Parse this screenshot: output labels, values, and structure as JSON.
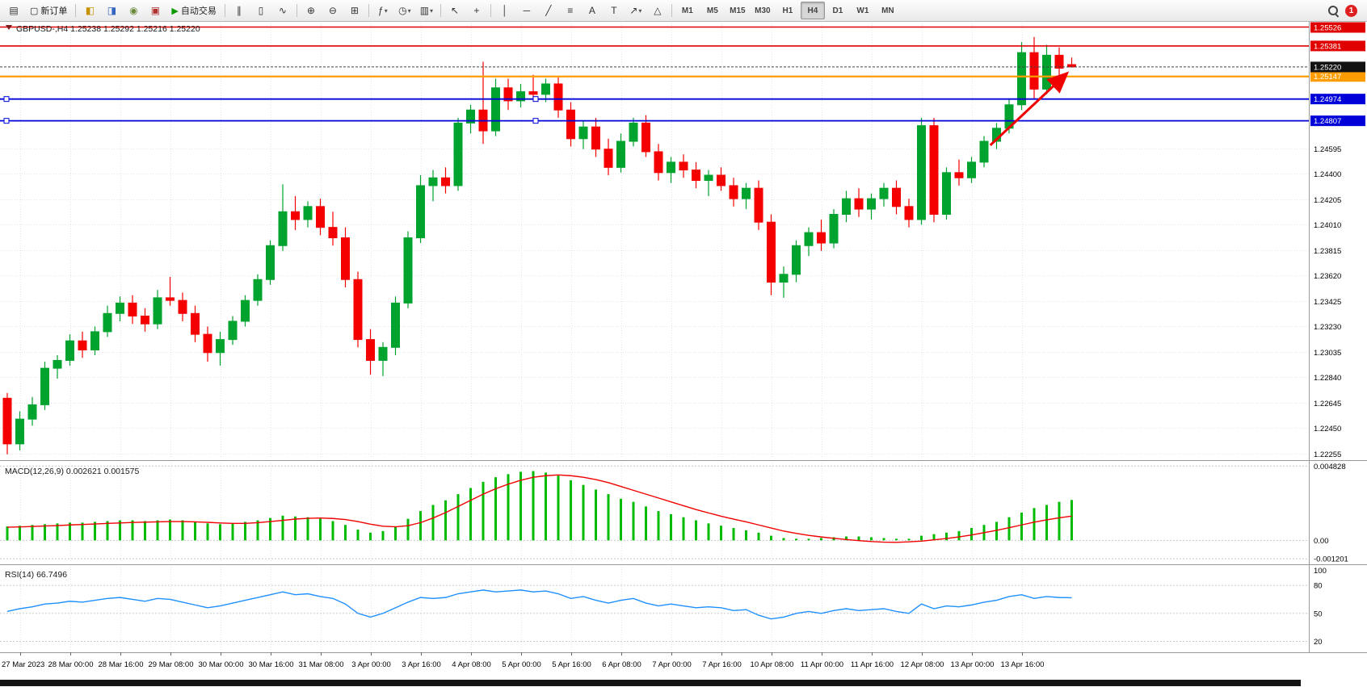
{
  "toolbar": {
    "new_order_label": "新订单",
    "autotrading_label": "自动交易",
    "timeframes": [
      "M1",
      "M5",
      "M15",
      "M30",
      "H1",
      "H4",
      "D1",
      "W1",
      "MN"
    ],
    "active_timeframe": "H4",
    "notification_badge": "1"
  },
  "icons": {
    "new_chart": "▤",
    "new_order": "▢",
    "market_watch": "◧",
    "data_window": "◨",
    "navigator": "◉",
    "terminal": "▣",
    "autotrading_play": "▶",
    "bars_chart": "∥",
    "candles_chart": "▯",
    "line_chart": "∿",
    "zoom_in": "⊕",
    "zoom_out": "⊖",
    "tile_windows": "⊞",
    "indicators": "ƒ",
    "periods": "◷",
    "templates": "▥",
    "cursor": "↖",
    "crosshair": "+",
    "vertical_line": "│",
    "horizontal_line": "─",
    "trendline": "╱",
    "fibonacci": "≡",
    "text_tool": "A",
    "label_tool": "T",
    "arrows_tool": "↗",
    "shapes_tool": "△",
    "chevron_down": "▾",
    "collapse_marker": "▼"
  },
  "chart": {
    "symbol": "GBPUSD-",
    "timeframe": "H4",
    "open": "1.25238",
    "high": "1.25292",
    "low": "1.25216",
    "close": "1.25220",
    "title_line": "GBPUSD-,H4 1.25238 1.25292 1.25216 1.25220"
  },
  "indicators": {
    "macd_label": "MACD(12,26,9) 0.002621 0.001575",
    "rsi_label": "RSI(14) 66.7496"
  },
  "chart_data": {
    "type": "candlestick",
    "symbol": "GBPUSD-",
    "timeframe": "H4",
    "price_axis": {
      "max": 1.2556,
      "min": 1.2223,
      "ticks": [
        1.24595,
        1.244,
        1.24205,
        1.2401,
        1.23815,
        1.2362,
        1.23425,
        1.2323,
        1.23035,
        1.2284,
        1.22645,
        1.2245,
        1.22255
      ]
    },
    "time_labels": [
      "27 Mar 2023",
      "28 Mar 00:00",
      "28 Mar 16:00",
      "29 Mar 08:00",
      "30 Mar 00:00",
      "30 Mar 16:00",
      "31 Mar 08:00",
      "3 Apr 00:00",
      "3 Apr 16:00",
      "4 Apr 08:00",
      "5 Apr 00:00",
      "5 Apr 16:00",
      "6 Apr 08:00",
      "7 Apr 00:00",
      "7 Apr 16:00",
      "10 Apr 08:00",
      "11 Apr 00:00",
      "11 Apr 16:00",
      "12 Apr 08:00",
      "13 Apr 00:00",
      "13 Apr 16:00"
    ],
    "candles": [
      [
        1.2268,
        1.2272,
        1.2225,
        1.2233
      ],
      [
        1.2233,
        1.2258,
        1.2228,
        1.2252
      ],
      [
        1.2252,
        1.2269,
        1.2247,
        1.2263
      ],
      [
        1.2263,
        1.2296,
        1.2259,
        1.2291
      ],
      [
        1.2291,
        1.2301,
        1.2283,
        1.2297
      ],
      [
        1.2297,
        1.2317,
        1.2293,
        1.2312
      ],
      [
        1.2312,
        1.2319,
        1.2299,
        1.2305
      ],
      [
        1.2305,
        1.2323,
        1.2301,
        1.2319
      ],
      [
        1.2319,
        1.2339,
        1.2315,
        1.2333
      ],
      [
        1.2333,
        1.2346,
        1.2327,
        1.2341
      ],
      [
        1.2341,
        1.2347,
        1.2325,
        1.2331
      ],
      [
        1.2331,
        1.2337,
        1.2319,
        1.2325
      ],
      [
        1.2325,
        1.2351,
        1.2321,
        1.2345
      ],
      [
        1.2345,
        1.2361,
        1.2339,
        1.2343
      ],
      [
        1.2343,
        1.2349,
        1.2327,
        1.2333
      ],
      [
        1.2333,
        1.2339,
        1.2311,
        1.2317
      ],
      [
        1.2317,
        1.2323,
        1.2296,
        1.2303
      ],
      [
        1.2303,
        1.2319,
        1.2293,
        1.2313
      ],
      [
        1.2313,
        1.2331,
        1.2309,
        1.2327
      ],
      [
        1.2327,
        1.2347,
        1.2323,
        1.2343
      ],
      [
        1.2343,
        1.2363,
        1.2339,
        1.2359
      ],
      [
        1.2359,
        1.2389,
        1.2355,
        1.2385
      ],
      [
        1.2385,
        1.2432,
        1.2381,
        1.2411
      ],
      [
        1.2411,
        1.2423,
        1.2397,
        1.2405
      ],
      [
        1.2405,
        1.2419,
        1.2399,
        1.2415
      ],
      [
        1.2415,
        1.2421,
        1.2393,
        1.2399
      ],
      [
        1.2399,
        1.2411,
        1.2385,
        1.2391
      ],
      [
        1.2391,
        1.2399,
        1.2353,
        1.2359
      ],
      [
        1.2359,
        1.2365,
        1.2307,
        1.2313
      ],
      [
        1.2313,
        1.2321,
        1.2286,
        1.2297
      ],
      [
        1.2297,
        1.2311,
        1.2285,
        1.2307
      ],
      [
        1.2307,
        1.2346,
        1.2301,
        1.2341
      ],
      [
        1.2341,
        1.2396,
        1.2337,
        1.2391
      ],
      [
        1.2391,
        1.2439,
        1.2387,
        1.2431
      ],
      [
        1.2431,
        1.2443,
        1.2419,
        1.2437
      ],
      [
        1.2437,
        1.2445,
        1.2425,
        1.2431
      ],
      [
        1.2431,
        1.2483,
        1.2427,
        1.2479
      ],
      [
        1.2479,
        1.2493,
        1.2471,
        1.2489
      ],
      [
        1.2489,
        1.2526,
        1.2463,
        1.2473
      ],
      [
        1.2473,
        1.2513,
        1.2469,
        1.2506
      ],
      [
        1.2506,
        1.2513,
        1.2489,
        1.2496
      ],
      [
        1.2496,
        1.2509,
        1.2491,
        1.2503
      ],
      [
        1.2503,
        1.2516,
        1.2497,
        1.2501
      ],
      [
        1.2501,
        1.2513,
        1.2495,
        1.2509
      ],
      [
        1.2509,
        1.2515,
        1.2483,
        1.2489
      ],
      [
        1.2489,
        1.2495,
        1.2461,
        1.2467
      ],
      [
        1.2467,
        1.2481,
        1.2459,
        1.2476
      ],
      [
        1.2476,
        1.2483,
        1.2453,
        1.2459
      ],
      [
        1.2459,
        1.2467,
        1.2439,
        1.2445
      ],
      [
        1.2445,
        1.2471,
        1.2441,
        1.2465
      ],
      [
        1.2465,
        1.2483,
        1.2461,
        1.2479
      ],
      [
        1.2479,
        1.2485,
        1.2453,
        1.2457
      ],
      [
        1.2457,
        1.2463,
        1.2435,
        1.2441
      ],
      [
        1.2441,
        1.2453,
        1.2433,
        1.2449
      ],
      [
        1.2449,
        1.2455,
        1.2437,
        1.2443
      ],
      [
        1.2443,
        1.2449,
        1.2429,
        1.2435
      ],
      [
        1.2435,
        1.2443,
        1.2423,
        1.2439
      ],
      [
        1.2439,
        1.2445,
        1.2427,
        1.2431
      ],
      [
        1.2431,
        1.2437,
        1.2415,
        1.2421
      ],
      [
        1.2421,
        1.2433,
        1.2413,
        1.2429
      ],
      [
        1.2429,
        1.2435,
        1.2397,
        1.2403
      ],
      [
        1.2403,
        1.2409,
        1.2347,
        1.2357
      ],
      [
        1.2357,
        1.2369,
        1.2345,
        1.2363
      ],
      [
        1.2363,
        1.2389,
        1.2357,
        1.2385
      ],
      [
        1.2385,
        1.2399,
        1.2377,
        1.2395
      ],
      [
        1.2395,
        1.2405,
        1.2381,
        1.2387
      ],
      [
        1.2387,
        1.2413,
        1.2383,
        1.2409
      ],
      [
        1.2409,
        1.2427,
        1.2403,
        1.2421
      ],
      [
        1.2421,
        1.2429,
        1.2407,
        1.2413
      ],
      [
        1.2413,
        1.2425,
        1.2405,
        1.2421
      ],
      [
        1.2421,
        1.2433,
        1.2415,
        1.2429
      ],
      [
        1.2429,
        1.2435,
        1.2409,
        1.2415
      ],
      [
        1.2415,
        1.2421,
        1.2399,
        1.2405
      ],
      [
        1.2405,
        1.2483,
        1.2401,
        1.2477
      ],
      [
        1.2477,
        1.2483,
        1.2403,
        1.2409
      ],
      [
        1.2409,
        1.2445,
        1.2405,
        1.2441
      ],
      [
        1.2441,
        1.2451,
        1.2431,
        1.2437
      ],
      [
        1.2437,
        1.2453,
        1.2433,
        1.2449
      ],
      [
        1.2449,
        1.2469,
        1.2445,
        1.2465
      ],
      [
        1.2465,
        1.2479,
        1.2459,
        1.2475
      ],
      [
        1.2475,
        1.2497,
        1.2471,
        1.2493
      ],
      [
        1.2493,
        1.2541,
        1.2489,
        1.2533
      ],
      [
        1.2533,
        1.2545,
        1.2497,
        1.2505
      ],
      [
        1.2505,
        1.2539,
        1.2501,
        1.2531
      ],
      [
        1.2531,
        1.2537,
        1.2515,
        1.2521
      ],
      [
        1.25238,
        1.25292,
        1.25216,
        1.2522
      ]
    ],
    "hlines": [
      {
        "price": 1.25526,
        "color": "#e00000",
        "label": "1.25526",
        "width": 1.6,
        "markers": false
      },
      {
        "price": 1.25381,
        "color": "#e00000",
        "label": "1.25381",
        "width": 1.6,
        "markers": false
      },
      {
        "price": 1.25147,
        "color": "#ff9c00",
        "label": "1.25147",
        "width": 2.2,
        "markers": false
      },
      {
        "price": 1.24974,
        "color": "#0000d8",
        "label": "1.24974",
        "width": 1.8,
        "markers": true
      },
      {
        "price": 1.24807,
        "color": "#0000d8",
        "label": "1.24807",
        "width": 1.8,
        "markers": true
      }
    ],
    "current_price": {
      "value": 1.2522,
      "label": "1.25220"
    },
    "arrow": {
      "from_candle": 78.5,
      "from_price": 1.2462,
      "to_candle": 84.5,
      "to_price": 1.2516,
      "color": "#f00000"
    },
    "macd": {
      "range": {
        "max": 0.005,
        "min": -0.0014
      },
      "axis_labels": [
        {
          "v": 0.004828,
          "t": "0.004828"
        },
        {
          "v": 0,
          "t": "0.00"
        },
        {
          "v": -0.001201,
          "t": "-0.001201"
        }
      ],
      "histogram": [
        0.0009,
        0.00095,
        0.001,
        0.00105,
        0.0011,
        0.00115,
        0.00115,
        0.0012,
        0.00125,
        0.0013,
        0.0013,
        0.00125,
        0.0013,
        0.00135,
        0.0013,
        0.0012,
        0.0011,
        0.00105,
        0.0011,
        0.0012,
        0.0013,
        0.00145,
        0.0016,
        0.00155,
        0.0015,
        0.0014,
        0.00125,
        0.001,
        0.0007,
        0.0005,
        0.0006,
        0.0009,
        0.0014,
        0.0019,
        0.0023,
        0.0026,
        0.003,
        0.0034,
        0.0038,
        0.0041,
        0.0043,
        0.00445,
        0.0045,
        0.0044,
        0.0042,
        0.0039,
        0.0036,
        0.0033,
        0.003,
        0.0027,
        0.0025,
        0.0022,
        0.0019,
        0.0017,
        0.0015,
        0.0013,
        0.0011,
        0.00095,
        0.0008,
        0.00065,
        0.0005,
        0.0003,
        0.00015,
        0.0001,
        0.0001,
        0.00015,
        0.0002,
        0.00025,
        0.00025,
        0.0002,
        0.00015,
        0.0001,
        0.0001,
        0.0003,
        0.0004,
        0.0005,
        0.0006,
        0.0008,
        0.001,
        0.0012,
        0.0015,
        0.0018,
        0.0021,
        0.0023,
        0.0025,
        0.002621
      ],
      "signal": [
        0.00085,
        0.00087,
        0.0009,
        0.00093,
        0.00096,
        0.001,
        0.00103,
        0.00106,
        0.0011,
        0.00113,
        0.00116,
        0.00118,
        0.0012,
        0.00122,
        0.00122,
        0.0012,
        0.00117,
        0.00113,
        0.0011,
        0.0011,
        0.00115,
        0.00122,
        0.0013,
        0.00138,
        0.00143,
        0.00145,
        0.00142,
        0.00135,
        0.00122,
        0.00105,
        0.00092,
        0.00088,
        0.00095,
        0.00115,
        0.00145,
        0.0018,
        0.0022,
        0.0026,
        0.003,
        0.00335,
        0.00365,
        0.0039,
        0.0041,
        0.0042,
        0.00425,
        0.0042,
        0.0041,
        0.00395,
        0.00375,
        0.0035,
        0.00325,
        0.003,
        0.00275,
        0.0025,
        0.00225,
        0.002,
        0.00178,
        0.00157,
        0.00138,
        0.0012,
        0.001,
        0.0008,
        0.0006,
        0.00045,
        0.00032,
        0.00022,
        0.00013,
        5e-05,
        -2e-05,
        -8e-05,
        -0.00012,
        -0.00013,
        -0.0001,
        -5e-05,
        3e-05,
        0.00012,
        0.00022,
        0.00035,
        0.0005,
        0.00065,
        0.00082,
        0.001,
        0.00118,
        0.00133,
        0.00146,
        0.001575
      ],
      "colors": {
        "histogram": "#00bb00",
        "signal": "#f00000"
      }
    },
    "rsi": {
      "range": {
        "max": 100,
        "min": 10
      },
      "levels": [
        80,
        50,
        20
      ],
      "axis_labels": [
        {
          "v": 100,
          "t": "100"
        },
        {
          "v": 80,
          "t": "80"
        },
        {
          "v": 50,
          "t": "50"
        },
        {
          "v": 20,
          "t": "20"
        }
      ],
      "values": [
        52,
        55,
        57,
        60,
        61,
        63,
        62,
        64,
        66,
        67,
        65,
        63,
        66,
        65,
        62,
        59,
        56,
        58,
        61,
        64,
        67,
        70,
        73,
        70,
        71,
        68,
        66,
        60,
        50,
        46,
        50,
        56,
        62,
        67,
        66,
        67,
        71,
        73,
        75,
        73,
        74,
        75,
        73,
        74,
        71,
        66,
        68,
        64,
        61,
        64,
        66,
        61,
        58,
        60,
        58,
        56,
        57,
        56,
        53,
        54,
        48,
        44,
        46,
        50,
        52,
        50,
        53,
        55,
        53,
        54,
        55,
        52,
        50,
        60,
        55,
        58,
        57,
        59,
        62,
        64,
        68,
        70,
        66,
        68,
        67,
        66.7
      ],
      "color": "#1e90ff"
    },
    "colors": {
      "up": "#00a32e",
      "down": "#f40000",
      "grid": "#e4e4e4"
    }
  }
}
